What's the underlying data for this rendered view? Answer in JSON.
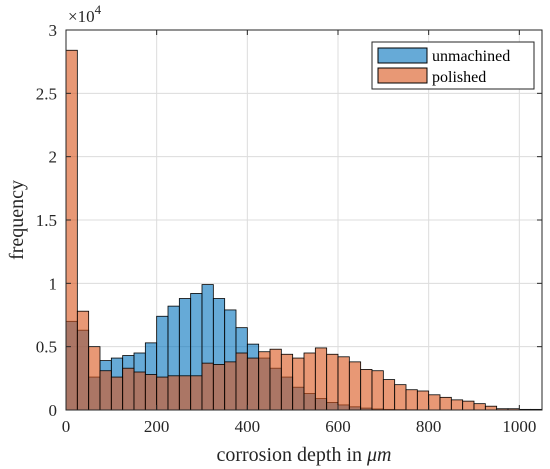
{
  "chart_data": {
    "type": "bar",
    "title": "",
    "xlabel": "corrosion depth in",
    "xlabel_math": "μm",
    "ylabel": "frequency",
    "y_exponent_base": "×10",
    "y_exponent_power": "4",
    "xlim": [
      0,
      1050
    ],
    "ylim": [
      0,
      30000
    ],
    "xticks": [
      0,
      200,
      400,
      600,
      800,
      1000
    ],
    "yticks": [
      0,
      5000,
      10000,
      15000,
      20000,
      25000,
      30000
    ],
    "ytick_labels": [
      "0",
      "0.5",
      "1",
      "1.5",
      "2",
      "2.5",
      "3"
    ],
    "grid": true,
    "legend_position": "top-right",
    "bin_width": 25,
    "bin_starts": [
      0,
      25,
      50,
      75,
      100,
      125,
      150,
      175,
      200,
      225,
      250,
      275,
      300,
      325,
      350,
      375,
      400,
      425,
      450,
      475,
      500,
      525,
      550,
      575,
      600,
      625,
      650,
      675,
      700,
      725,
      750,
      775,
      800,
      825,
      850,
      875,
      900,
      925,
      950,
      975,
      1000,
      1025
    ],
    "series": [
      {
        "name": "unmachined",
        "color": "#0072BD",
        "fill": "rgba(0,114,189,0.6)",
        "values": [
          7000,
          6300,
          2600,
          3900,
          4100,
          4300,
          4500,
          5300,
          7400,
          8200,
          8800,
          9200,
          9900,
          8800,
          7900,
          6500,
          5200,
          4100,
          3300,
          2600,
          1800,
          1300,
          900,
          600,
          400,
          250,
          150,
          80,
          50,
          30,
          20,
          10,
          0,
          0,
          0,
          0,
          0,
          0,
          0,
          0,
          0,
          0
        ]
      },
      {
        "name": "polished",
        "color": "#D95319",
        "fill": "rgba(217,83,25,0.6)",
        "values": [
          28400,
          7800,
          5000,
          3100,
          2600,
          3300,
          3000,
          2800,
          2600,
          2700,
          2700,
          2700,
          3700,
          3600,
          3800,
          4500,
          4100,
          4600,
          4800,
          4400,
          4100,
          4500,
          4900,
          4400,
          4200,
          3800,
          3200,
          3100,
          2400,
          2000,
          1600,
          1500,
          1200,
          1000,
          800,
          700,
          500,
          300,
          100,
          100,
          50,
          50
        ]
      }
    ]
  }
}
